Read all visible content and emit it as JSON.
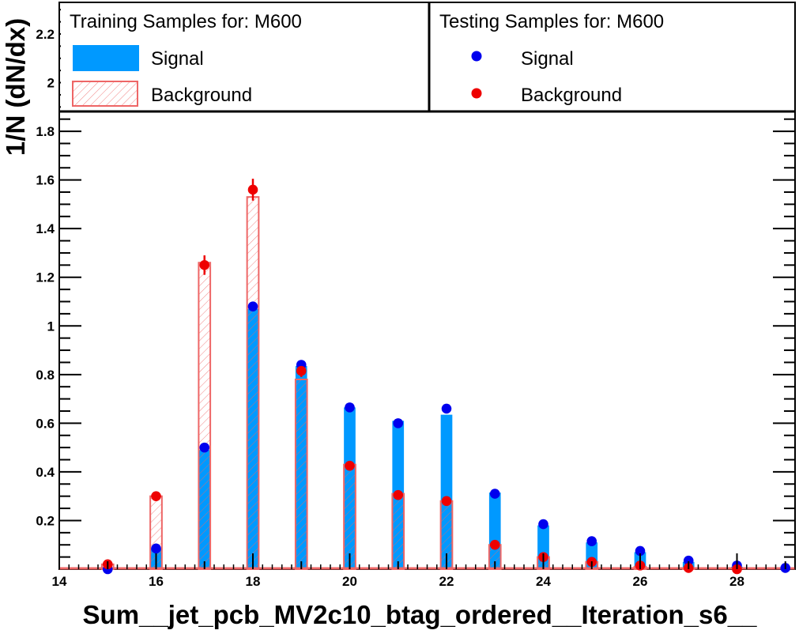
{
  "chart_data": {
    "type": "bar",
    "xlabel": "Sum__jet_pcb_MV2c10_btag_ordered__Iteration_s6__",
    "ylabel": "1/N (dN/dx)",
    "xlim": [
      14,
      29.2
    ],
    "ylim": [
      0,
      2.33
    ],
    "x_ticks": [
      14,
      16,
      18,
      20,
      22,
      24,
      26,
      28
    ],
    "y_ticks": [
      0.2,
      0.4,
      0.6,
      0.8,
      1,
      1.2,
      1.4,
      1.6,
      1.8,
      2,
      2.2
    ],
    "legend": {
      "training_header": "Training Samples for: M600",
      "testing_header": "Testing Samples for: M600",
      "signal_label": "Signal",
      "background_label": "Background"
    },
    "training_signal": {
      "x": [
        15,
        16,
        17,
        18,
        19,
        20,
        21,
        22,
        23,
        24,
        25,
        26,
        27,
        28,
        29
      ],
      "values": [
        0.0,
        0.085,
        0.49,
        1.07,
        0.835,
        0.665,
        0.61,
        0.635,
        0.315,
        0.18,
        0.11,
        0.07,
        0.03,
        0.01,
        0.0
      ]
    },
    "training_background": {
      "x": [
        15,
        16,
        17,
        18,
        19,
        20,
        21,
        22,
        23,
        24,
        25,
        26,
        27,
        28,
        29
      ],
      "values": [
        0.02,
        0.3,
        1.26,
        1.53,
        0.78,
        0.43,
        0.31,
        0.28,
        0.1,
        0.05,
        0.03,
        0.01,
        0.005,
        0.0,
        0.0
      ]
    },
    "testing_signal": {
      "x": [
        15,
        16,
        17,
        18,
        19,
        20,
        21,
        22,
        23,
        24,
        25,
        26,
        27,
        28,
        29
      ],
      "values": [
        0.0,
        0.085,
        0.5,
        1.08,
        0.84,
        0.665,
        0.6,
        0.66,
        0.31,
        0.185,
        0.115,
        0.075,
        0.035,
        0.015,
        0.005
      ]
    },
    "testing_background": {
      "x": [
        15,
        16,
        17,
        18,
        19,
        20,
        21,
        22,
        23,
        24,
        25,
        26,
        27,
        28,
        29
      ],
      "values": [
        0.02,
        0.3,
        1.25,
        1.56,
        0.815,
        0.425,
        0.305,
        0.28,
        0.1,
        0.05,
        0.03,
        0.015,
        0.005,
        0.0,
        0.0
      ],
      "errors": [
        0.008,
        0.015,
        0.04,
        0.045,
        0.025,
        0.015,
        0.012,
        0.012,
        0.008,
        0.005,
        0.004,
        0.003,
        0.002,
        0.0,
        0.0
      ]
    },
    "colors": {
      "signal_fill": "#0099ff",
      "background_line": "#ee6666",
      "signal_marker": "#0000ee",
      "background_marker": "#ee0000"
    },
    "legend_position": "top"
  }
}
